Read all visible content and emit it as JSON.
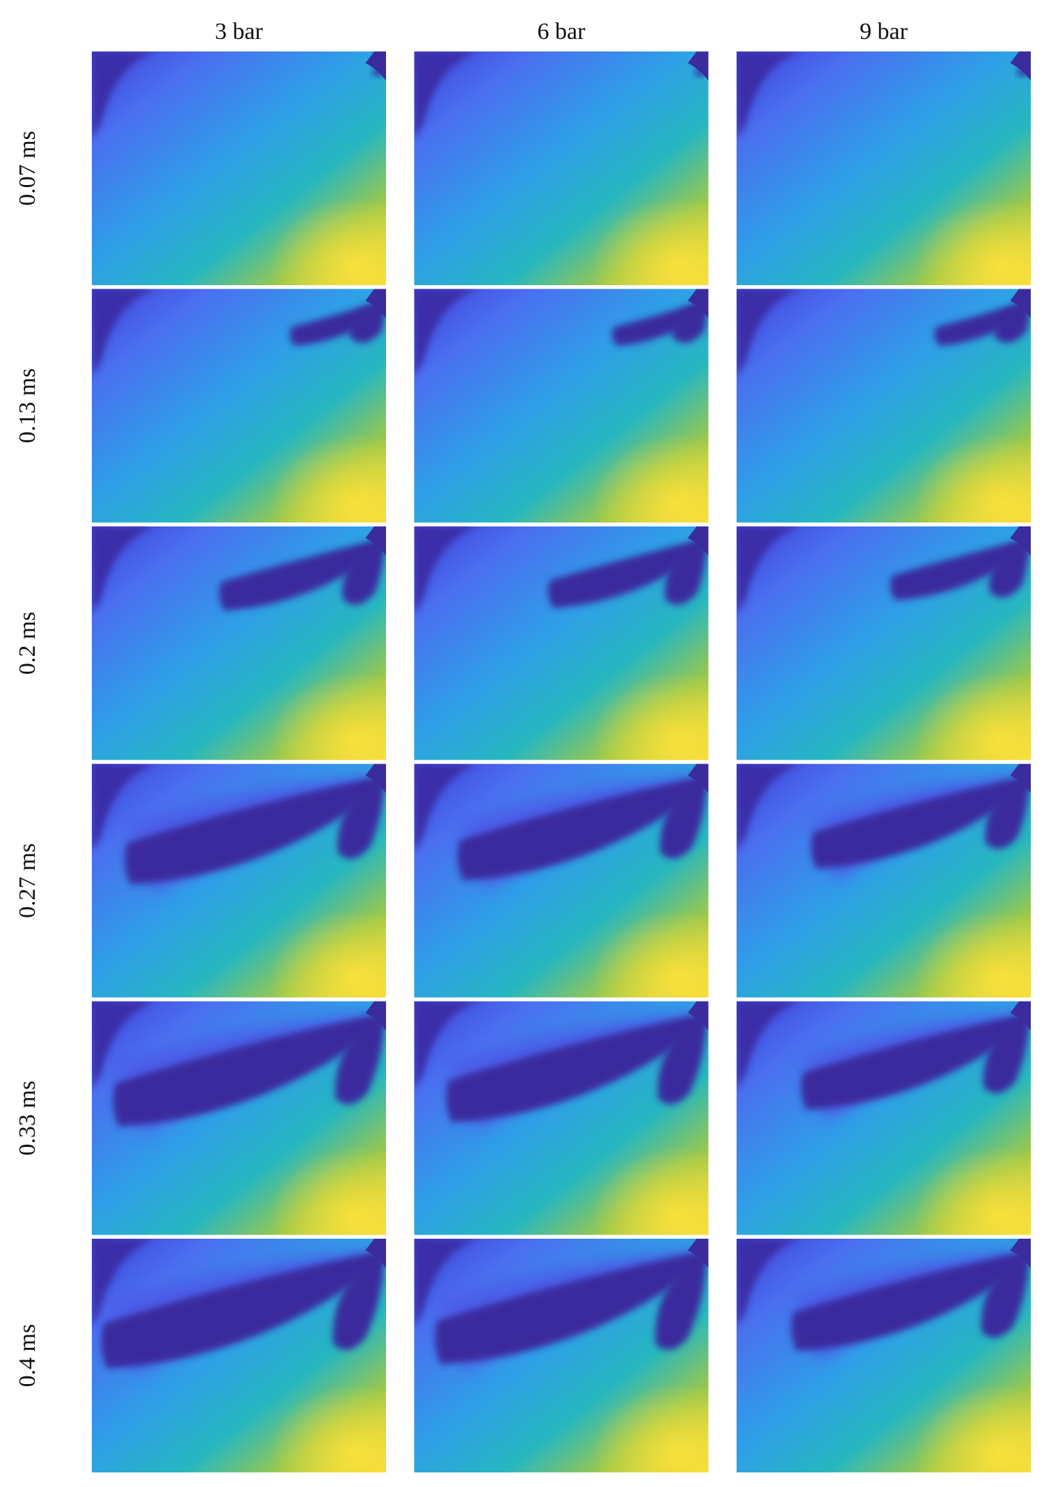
{
  "columns": [
    "3 bar",
    "6 bar",
    "9 bar"
  ],
  "rows": [
    "0.07 ms",
    "0.13 ms",
    "0.2 ms",
    "0.27 ms",
    "0.33 ms",
    "0.4 ms"
  ]
}
